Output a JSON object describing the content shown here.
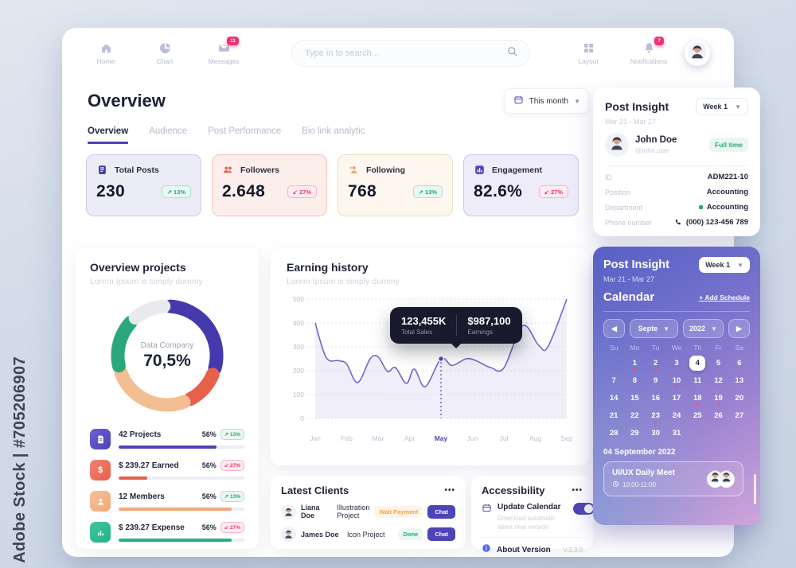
{
  "watermark": "Adobe Stock | #705206907",
  "topbar": {
    "nav_left": [
      {
        "label": "Home",
        "icon": "home-icon",
        "glyph": "home"
      },
      {
        "label": "Chart",
        "icon": "chart-icon",
        "glyph": "pie"
      },
      {
        "label": "Messages",
        "icon": "messages-icon",
        "glyph": "mail",
        "badge": "11"
      }
    ],
    "search": {
      "placeholder": "Type in to search ..",
      "icon": "search-icon"
    },
    "nav_right": [
      {
        "label": "Layout",
        "icon": "layout-icon",
        "glyph": "grid"
      },
      {
        "label": "Notifications",
        "icon": "notifications-icon",
        "glyph": "bell",
        "badge": "7"
      }
    ]
  },
  "overview": {
    "title": "Overview",
    "period": "This month",
    "tabs": [
      {
        "label": "Overview",
        "active": true
      },
      {
        "label": "Audience",
        "active": false
      },
      {
        "label": "Post Performance",
        "active": false
      },
      {
        "label": "Bio link analytic",
        "active": false
      }
    ]
  },
  "stats": [
    {
      "id": "total-posts",
      "label": "Total Posts",
      "value": "230",
      "trend": "13%",
      "dir": "up",
      "bg": "#ECECF6",
      "border": "#CBC9E6",
      "icon": "posts-icon",
      "glyph": "posts",
      "icon_color": "#3F3D9E"
    },
    {
      "id": "followers",
      "label": "Followers",
      "value": "2.648",
      "trend": "27%",
      "dir": "down",
      "bg": "#FCEEEA",
      "border": "#F2C6BC",
      "icon": "followers-icon",
      "glyph": "people",
      "icon_color": "#E2604A"
    },
    {
      "id": "following",
      "label": "Following",
      "value": "768",
      "trend": "13%",
      "dir": "up",
      "bg": "#FDF7EF",
      "border": "#F0DCC2",
      "icon": "following-icon",
      "glyph": "person-plus",
      "icon_color": "#F0A06A"
    },
    {
      "id": "engagement",
      "label": "Engagement",
      "value": "82.6%",
      "trend": "27%",
      "dir": "down",
      "bg": "#EDECF8",
      "border": "#CCC9EA",
      "icon": "engagement-icon",
      "glyph": "bars-square",
      "icon_color": "#4D44B5"
    }
  ],
  "chart_data": [
    {
      "type": "pie",
      "title": "Overview projects",
      "subtitle": "Lorem Ipsum is simply dummy",
      "center_label": "Data Company",
      "center_value": "70,5%",
      "segments": [
        {
          "name": "indigo",
          "color": "#4539AE",
          "pct": 28
        },
        {
          "name": "coral",
          "color": "#E7604B",
          "pct": 11
        },
        {
          "name": "peach",
          "color": "#F2BE92",
          "pct": 25
        },
        {
          "name": "green",
          "color": "#2AA87C",
          "pct": 15
        },
        {
          "name": "light-gray",
          "color": "#E9EAEE",
          "pct": 10
        }
      ]
    },
    {
      "type": "area",
      "title": "Earning history",
      "subtitle": "Lorem Ipsum is simply dummy",
      "x_labels": [
        "Jan",
        "Feb",
        "Mar",
        "Apr",
        "May",
        "Jun",
        "Jul",
        "Aug",
        "Sep"
      ],
      "highlight_x": "May",
      "y_ticks": [
        0,
        100,
        200,
        300,
        400,
        500
      ],
      "ylim": [
        0,
        500
      ],
      "line_color": "#6F66C8",
      "fill_color": "rgba(111,102,200,0.10)",
      "points": [
        [
          0,
          400
        ],
        [
          0.35,
          255
        ],
        [
          0.75,
          242
        ],
        [
          1,
          228
        ],
        [
          1.35,
          150
        ],
        [
          1.75,
          250
        ],
        [
          2,
          258
        ],
        [
          2.3,
          197
        ],
        [
          2.55,
          213
        ],
        [
          2.9,
          147
        ],
        [
          3.15,
          207
        ],
        [
          3.5,
          133
        ],
        [
          4,
          250
        ],
        [
          4.35,
          222
        ],
        [
          4.8,
          250
        ],
        [
          5.1,
          243
        ],
        [
          5.6,
          212
        ],
        [
          6,
          212
        ],
        [
          6.6,
          388
        ],
        [
          7.1,
          308
        ],
        [
          7.4,
          300
        ],
        [
          8,
          500
        ]
      ],
      "marker": {
        "x": 4,
        "y": 250
      },
      "tooltip": {
        "total_sales": "123,455K",
        "total_sales_label": "Total Sales",
        "earnings": "$987,100",
        "earnings_label": "Earnings"
      }
    }
  ],
  "projects": {
    "items": [
      {
        "label": "42 Projects",
        "pct": "56%",
        "trend": "13%",
        "dir": "up",
        "bar": 0.78,
        "color": "#4D44B5",
        "color2": "#6a5fd6",
        "icon": "projects-icon",
        "glyph": "doc"
      },
      {
        "label": "$ 239.27 Earned",
        "pct": "56%",
        "trend": "27%",
        "dir": "down",
        "bar": 0.23,
        "color": "#E8604C",
        "color2": "#f0826f",
        "icon": "earned-icon",
        "glyph": "dollar"
      },
      {
        "label": "12 Members",
        "pct": "56%",
        "trend": "13%",
        "dir": "up",
        "bar": 0.9,
        "color": "#F2A878",
        "color2": "#f6c096",
        "icon": "members-icon",
        "glyph": "person"
      },
      {
        "label": "$ 239.27 Expense",
        "pct": "56%",
        "trend": "27%",
        "dir": "down",
        "bar": 0.9,
        "color": "#21B287",
        "color2": "#3fc79e",
        "icon": "expense-icon",
        "glyph": "bars"
      }
    ]
  },
  "clients": {
    "title": "Latest Clients",
    "menu": "•••",
    "rows": [
      {
        "name": "Liana Doe",
        "project": "Illustration Project",
        "status": "Wait Payment",
        "status_color": "#F0A23C",
        "status_bg": "#FEF5E8",
        "chat": "Chat"
      },
      {
        "name": "James Doe",
        "project": "Icon Project",
        "status": "Done",
        "status_color": "#27A87D",
        "status_bg": "#E9F8F0",
        "chat": "Chat"
      }
    ]
  },
  "accessibility": {
    "title": "Accessibility",
    "menu": "•••",
    "update_label": "Update Calendar",
    "update_desc": "Download automatic latest new version.",
    "about_label": "About Version",
    "version": "V.2.3.0"
  },
  "insight": {
    "title": "Post Insight",
    "week": "Week 1",
    "dates": "Mar 21 - Mar 27",
    "name": "John Doe",
    "handle": "@john.user",
    "badge": "Full time",
    "fields": [
      {
        "label": "ID",
        "value": "ADM221-10"
      },
      {
        "label": "Position",
        "value": "Accounting"
      },
      {
        "label": "Department",
        "value": "Accounting",
        "dot": true
      },
      {
        "label": "Phone number",
        "value": "(000) 123-456 789",
        "icon": "phone"
      }
    ]
  },
  "calendar": {
    "title": "Post Insight",
    "week": "Week 1",
    "dates": "Mar 21 - Mar 27",
    "section": "Calendar",
    "add_schedule": "Add Schedule",
    "month": "Septe",
    "year": "2022",
    "weekdays": [
      "Su",
      "Mo",
      "Tu",
      "We",
      "Th",
      "Fr",
      "Sa"
    ],
    "weeks": [
      [
        "",
        1,
        2,
        3,
        4,
        5,
        6
      ],
      [
        7,
        8,
        9,
        10,
        11,
        12,
        13
      ],
      [
        14,
        15,
        16,
        17,
        18,
        19,
        20
      ],
      [
        21,
        22,
        23,
        24,
        25,
        26,
        27
      ],
      [
        28,
        29,
        30,
        31,
        "",
        "",
        ""
      ]
    ],
    "selected": 4,
    "dotted": [
      1,
      2,
      10,
      18,
      19,
      23
    ],
    "event_date": "04 September 2022",
    "event_title": "UI/UX Daily Meet",
    "event_time": "10:00-11:00"
  }
}
